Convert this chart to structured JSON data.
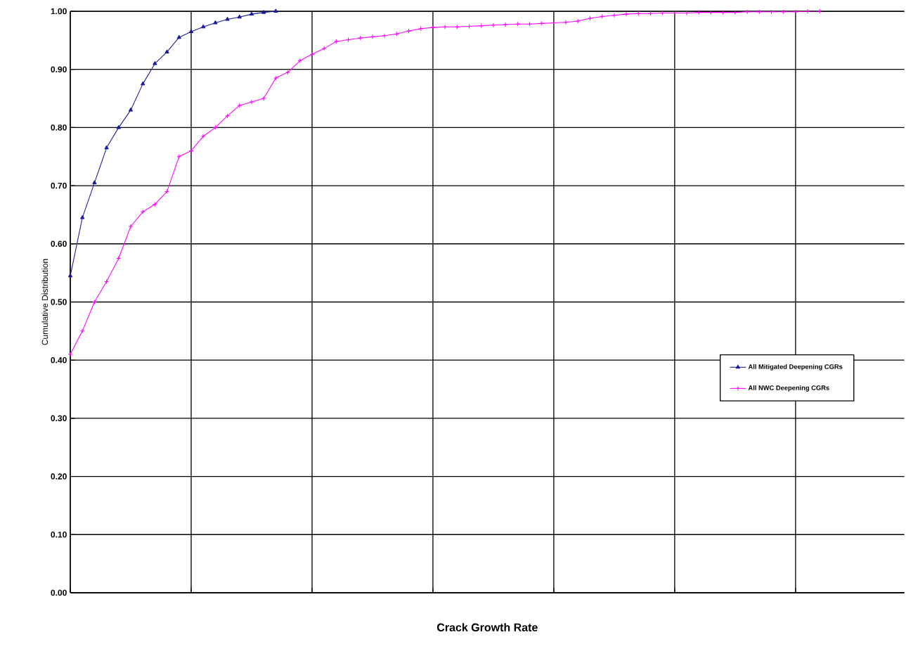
{
  "chart_data": {
    "type": "line",
    "xlabel": "Crack Growth Rate",
    "ylabel": "Cumulative Distribution",
    "categories": [
      null,
      null,
      null,
      null,
      null,
      null,
      null,
      null,
      null,
      null,
      null,
      null,
      null,
      null,
      null,
      null,
      null,
      null,
      null,
      null,
      null,
      null,
      null,
      null,
      null,
      null,
      null,
      null,
      null,
      null,
      null,
      null,
      null,
      null,
      null,
      null,
      null,
      null,
      null,
      null,
      null,
      null,
      null,
      null,
      null,
      null,
      null,
      null,
      null,
      null,
      null,
      null,
      null,
      null,
      null,
      null,
      null,
      null,
      null,
      null,
      null,
      null,
      null,
      null,
      null,
      null,
      null,
      null,
      null,
      null
    ],
    "ylim": [
      0,
      1
    ],
    "yticks": [
      {
        "value": 0,
        "label": "0.00"
      },
      {
        "value": 0.1,
        "label": "0.10"
      },
      {
        "value": 0.2,
        "label": "0.20"
      },
      {
        "value": 0.3,
        "label": "0.30"
      },
      {
        "value": 0.4,
        "label": "0.40"
      },
      {
        "value": 0.5,
        "label": "0.50"
      },
      {
        "value": 0.6,
        "label": "0.60"
      },
      {
        "value": 0.7,
        "label": "0.70"
      },
      {
        "value": 0.8,
        "label": "0.80"
      },
      {
        "value": 0.9,
        "label": "0.90"
      },
      {
        "value": 1,
        "label": "1.00"
      }
    ],
    "grid": true,
    "legend": "right",
    "series": [
      {
        "name": "All Mitigated Deepening CGRs",
        "color": "#1a1a9c",
        "marker": "triangle",
        "values": [
          0.545,
          0.645,
          0.705,
          0.765,
          0.8,
          0.83,
          0.875,
          0.91,
          0.93,
          0.955,
          0.965,
          0.973,
          0.98,
          0.986,
          0.99,
          0.995,
          0.998,
          1.0,
          null,
          null,
          null,
          null,
          null,
          null,
          null,
          null,
          null,
          null,
          null,
          null,
          null,
          null,
          null,
          null,
          null,
          null,
          null,
          null,
          null,
          null,
          null,
          null,
          null,
          null,
          null,
          null,
          null,
          null,
          null,
          null,
          null,
          null,
          null,
          null,
          null,
          null,
          null,
          null,
          null,
          null,
          null,
          null,
          null,
          null,
          null,
          null,
          null,
          null,
          null,
          null
        ]
      },
      {
        "name": "All NWC Deepening CGRs",
        "color": "#ff00ff",
        "marker": "cross",
        "values": [
          0.41,
          0.45,
          0.5,
          0.535,
          0.575,
          0.63,
          0.655,
          0.668,
          0.69,
          0.75,
          0.76,
          0.785,
          0.8,
          0.82,
          0.838,
          0.844,
          0.85,
          0.885,
          0.895,
          0.915,
          0.926,
          0.936,
          0.948,
          0.951,
          0.954,
          0.956,
          0.958,
          0.961,
          0.966,
          0.97,
          0.972,
          0.973,
          0.973,
          0.974,
          0.975,
          0.976,
          0.977,
          0.978,
          0.978,
          0.979,
          0.98,
          0.981,
          0.983,
          0.988,
          0.991,
          0.993,
          0.995,
          0.996,
          0.996,
          0.997,
          0.997,
          0.997,
          0.998,
          0.998,
          0.998,
          0.998,
          0.999,
          0.999,
          0.999,
          0.999,
          0.999,
          1.0,
          1.0,
          null,
          null,
          null,
          null,
          null,
          null,
          null
        ]
      }
    ]
  }
}
